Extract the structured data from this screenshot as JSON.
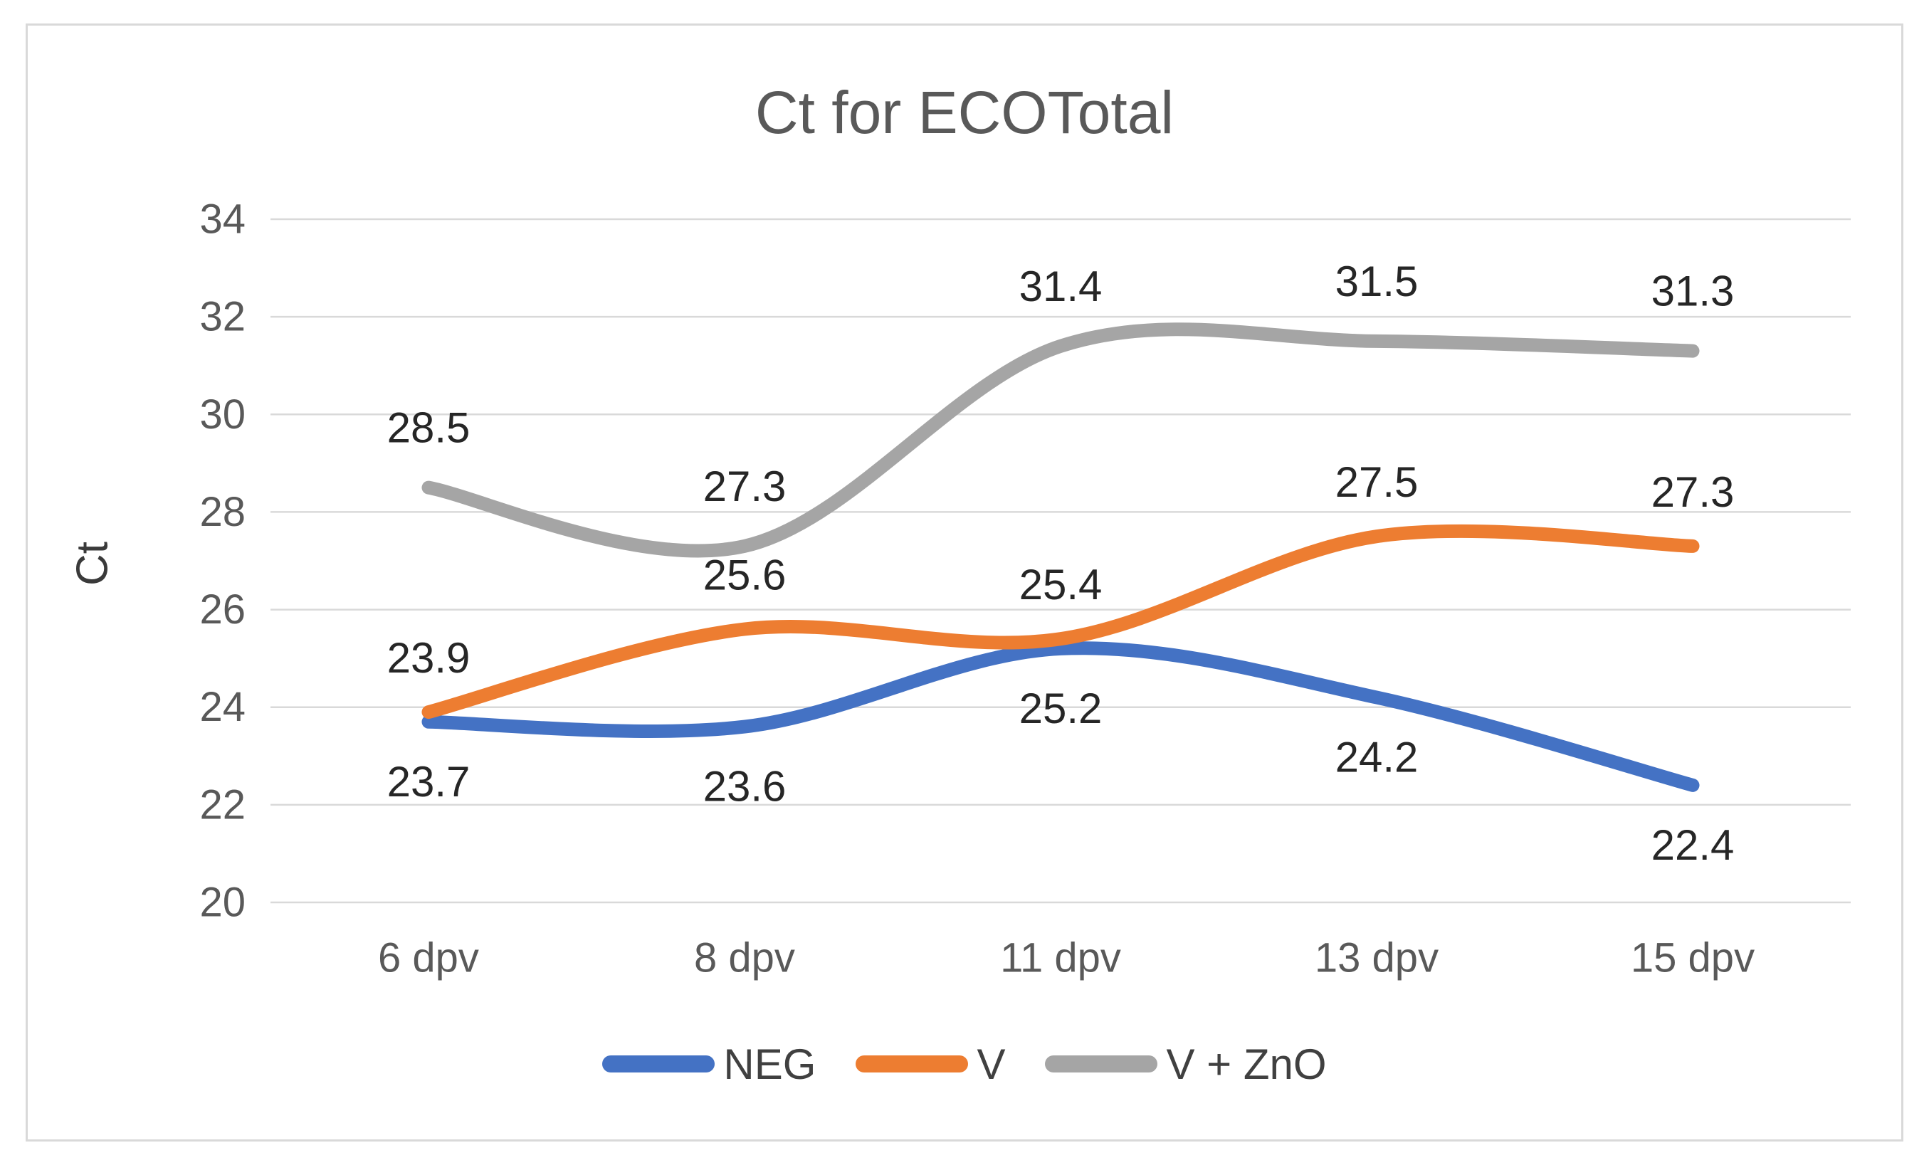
{
  "chart_data": {
    "type": "line",
    "title": "Ct for ECOTotal",
    "ylabel": "Ct",
    "xlabel": "",
    "x_categories": [
      "6 dpv",
      "8 dpv",
      "11 dpv",
      "13 dpv",
      "15 dpv"
    ],
    "y_ticks": [
      20,
      22,
      24,
      26,
      28,
      30,
      32,
      34
    ],
    "ylim": [
      20,
      34
    ],
    "grid": "horizontal",
    "grid_color": "#d9d9d9",
    "axis_text_color": "#595959",
    "data_label_color": "#262626",
    "smooth": true,
    "legend_position": "bottom",
    "series": [
      {
        "name": "NEG",
        "color": "#4472C4",
        "values": [
          23.7,
          23.6,
          25.2,
          24.2,
          22.4
        ],
        "data_labels": [
          "23.7",
          "23.6",
          "25.2",
          "24.2",
          "22.4"
        ],
        "label_placement": "below",
        "label_offset_y": 84
      },
      {
        "name": "V",
        "color": "#ED7D31",
        "values": [
          23.9,
          25.6,
          25.4,
          27.5,
          27.3
        ],
        "data_labels": [
          "23.9",
          "25.6",
          "25.4",
          "27.5",
          "27.3"
        ],
        "label_placement": "above",
        "label_offset_y": -76
      },
      {
        "name": "V + ZnO",
        "color": "#A5A5A5",
        "values": [
          28.5,
          27.3,
          31.4,
          31.5,
          31.3
        ],
        "data_labels": [
          "28.5",
          "27.3",
          "31.4",
          "31.5",
          "31.3"
        ],
        "label_placement": "above",
        "label_offset_y": -84
      }
    ]
  }
}
